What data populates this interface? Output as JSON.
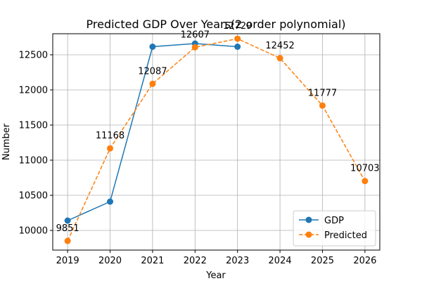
{
  "chart_data": {
    "type": "line",
    "title": "Predicted GDP Over Years(2 order polynomial)",
    "xlabel": "Year",
    "ylabel": "Number",
    "x": [
      "2019",
      "2020",
      "2021",
      "2022",
      "2023",
      "2024",
      "2025",
      "2026"
    ],
    "xlim": [
      2018.65,
      2026.35
    ],
    "ylim": [
      9720,
      12800
    ],
    "yticks": [
      10000,
      10500,
      11000,
      11500,
      12000,
      12500
    ],
    "grid": true,
    "legend_position": "lower-right",
    "series": [
      {
        "name": "GDP",
        "color": "#1f77b4",
        "line_style": "solid",
        "marker": "circle",
        "x": [
          2019,
          2020,
          2021,
          2022,
          2023
        ],
        "values": [
          10140,
          10410,
          12615,
          12660,
          12615
        ]
      },
      {
        "name": "Predicted",
        "color": "#ff7f0e",
        "line_style": "dashed",
        "marker": "circle",
        "x": [
          2019,
          2020,
          2021,
          2022,
          2023,
          2024,
          2025,
          2026
        ],
        "values": [
          9851,
          11168,
          12087,
          12607,
          12729,
          12452,
          11777,
          10703
        ],
        "data_labels": [
          "9851",
          "11168",
          "12087",
          "12607",
          "12729",
          "12452",
          "11777",
          "10703"
        ]
      }
    ]
  }
}
